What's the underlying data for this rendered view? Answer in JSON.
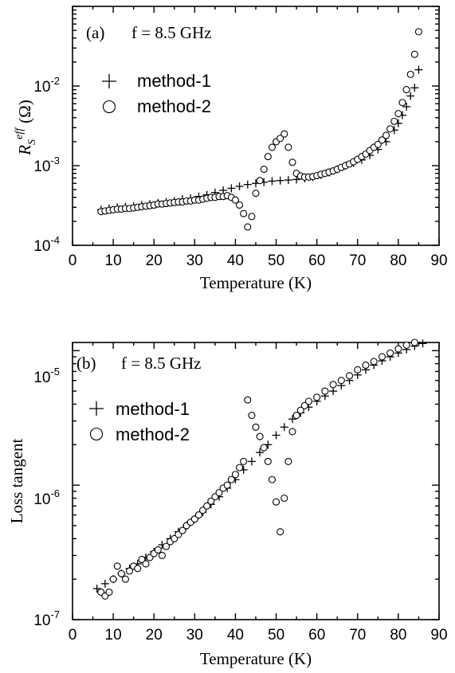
{
  "chart_data": [
    {
      "type": "scatter",
      "panel_label": "(a)",
      "frequency_label": "f = 8.5 GHz",
      "xlabel": "Temperature (K)",
      "ylabel": "R_S^eff (Ω)",
      "ylabel_parts": {
        "main": "R",
        "sub": "S",
        "sup": "eff",
        "unit": "(Ω)"
      },
      "xlim": [
        0,
        90
      ],
      "ylim": [
        0.0001,
        0.1
      ],
      "yscale": "log",
      "x_ticks": [
        "0",
        "10",
        "20",
        "30",
        "40",
        "50",
        "60",
        "70",
        "80",
        "90"
      ],
      "y_ticks": [
        {
          "base": "10",
          "exp": "-4"
        },
        {
          "base": "10",
          "exp": "-3"
        },
        {
          "base": "10",
          "exp": "-2"
        }
      ],
      "legend_position": "top-left",
      "series": [
        {
          "name": "method-1",
          "marker": "plus",
          "x": [
            7,
            9,
            11,
            13,
            15,
            17,
            19,
            21,
            23,
            25,
            27,
            29,
            31,
            33,
            35,
            37,
            39,
            41,
            43,
            45,
            47,
            49,
            51,
            53,
            55,
            57,
            59,
            61,
            63,
            65,
            67,
            69,
            71,
            73,
            75,
            77,
            79,
            80,
            81,
            82,
            83,
            84,
            85
          ],
          "y": [
            0.00028,
            0.00029,
            0.0003,
            0.000305,
            0.00031,
            0.00032,
            0.00033,
            0.00034,
            0.00035,
            0.00036,
            0.00038,
            0.00039,
            0.00041,
            0.00043,
            0.00046,
            0.00049,
            0.00052,
            0.00055,
            0.00058,
            0.0006,
            0.00062,
            0.00064,
            0.00065,
            0.00066,
            0.00067,
            0.00069,
            0.00072,
            0.00076,
            0.00082,
            0.0009,
            0.001,
            0.00108,
            0.00118,
            0.00135,
            0.0016,
            0.002,
            0.0028,
            0.0034,
            0.0043,
            0.0055,
            0.0075,
            0.0095,
            0.016
          ]
        },
        {
          "name": "method-2",
          "marker": "circle",
          "x": [
            7,
            8,
            9,
            10,
            11,
            12,
            13,
            14,
            15,
            16,
            17,
            18,
            19,
            20,
            21,
            22,
            23,
            24,
            25,
            26,
            27,
            28,
            29,
            30,
            31,
            32,
            33,
            34,
            35,
            36,
            37,
            38,
            39,
            40,
            41,
            42,
            43,
            44,
            45,
            46,
            47,
            48,
            49,
            50,
            51,
            52,
            53,
            54,
            55,
            56,
            57,
            58,
            59,
            60,
            61,
            62,
            63,
            64,
            65,
            66,
            67,
            68,
            69,
            70,
            71,
            72,
            73,
            74,
            75,
            76,
            77,
            78,
            79,
            80,
            81,
            82,
            83,
            84,
            85
          ],
          "y": [
            0.000265,
            0.00027,
            0.000275,
            0.00028,
            0.000285,
            0.000285,
            0.00029,
            0.00029,
            0.000295,
            0.0003,
            0.000305,
            0.00031,
            0.000315,
            0.00032,
            0.00033,
            0.00033,
            0.000335,
            0.00034,
            0.000345,
            0.00035,
            0.00035,
            0.00036,
            0.00036,
            0.00037,
            0.00037,
            0.00038,
            0.00039,
            0.0004,
            0.0004,
            0.00041,
            0.00041,
            0.00042,
            0.0004,
            0.00037,
            0.00032,
            0.00025,
            0.00017,
            0.00023,
            0.00045,
            0.00065,
            0.0009,
            0.0013,
            0.0017,
            0.002,
            0.0022,
            0.0025,
            0.0017,
            0.0011,
            0.0008,
            0.00074,
            0.00072,
            0.00072,
            0.00073,
            0.00075,
            0.00078,
            0.0008,
            0.00083,
            0.00086,
            0.0009,
            0.00095,
            0.001,
            0.00105,
            0.00112,
            0.0012,
            0.0013,
            0.0014,
            0.00155,
            0.0017,
            0.00185,
            0.0021,
            0.0024,
            0.0029,
            0.0036,
            0.0045,
            0.0062,
            0.009,
            0.014,
            0.025,
            0.048
          ]
        }
      ]
    },
    {
      "type": "scatter",
      "panel_label": "(b)",
      "frequency_label": "f = 8.5 GHz",
      "xlabel": "Temperature (K)",
      "ylabel": "Loss tangent",
      "xlim": [
        0,
        90
      ],
      "ylim": [
        1e-07,
        1.15e-05
      ],
      "yscale": "log",
      "x_ticks": [
        "0",
        "10",
        "20",
        "30",
        "40",
        "50",
        "60",
        "70",
        "80",
        "90"
      ],
      "y_ticks": [
        {
          "base": "10",
          "exp": "-7"
        },
        {
          "base": "10",
          "exp": "-6"
        },
        {
          "base": "10",
          "exp": "-5"
        }
      ],
      "legend_position": "top-left",
      "series": [
        {
          "name": "method-1",
          "marker": "plus",
          "x": [
            6,
            8,
            10,
            12,
            14,
            16,
            18,
            20,
            22,
            24,
            26,
            28,
            30,
            32,
            34,
            36,
            38,
            40,
            42,
            44,
            46,
            48,
            50,
            52,
            54,
            56,
            58,
            60,
            62,
            64,
            66,
            68,
            70,
            72,
            74,
            76,
            78,
            80,
            82,
            84,
            86
          ],
          "y": [
            1.7e-07,
            1.85e-07,
            2e-07,
            2.2e-07,
            2.4e-07,
            2.6e-07,
            2.9e-07,
            3.2e-07,
            3.6e-07,
            4e-07,
            4.5e-07,
            5e-07,
            5.6e-07,
            6.3e-07,
            7.2e-07,
            8.2e-07,
            9.5e-07,
            1.1e-06,
            1.3e-06,
            1.5e-06,
            1.75e-06,
            2e-06,
            2.35e-06,
            2.7e-06,
            3.1e-06,
            3.45e-06,
            3.8e-06,
            4.2e-06,
            4.6e-06,
            5e-06,
            5.5e-06,
            6e-06,
            6.6e-06,
            7.2e-06,
            7.8e-06,
            8.4e-06,
            9e-06,
            9.6e-06,
            1.02e-05,
            1.08e-05,
            1.13e-05
          ]
        },
        {
          "name": "method-2",
          "marker": "circle",
          "x": [
            7,
            8,
            9,
            10,
            11,
            12,
            13,
            14,
            15,
            16,
            17,
            18,
            19,
            20,
            21,
            22,
            23,
            24,
            25,
            26,
            27,
            28,
            29,
            30,
            31,
            32,
            33,
            34,
            35,
            36,
            37,
            38,
            39,
            40,
            41,
            42,
            43,
            44,
            45,
            46,
            47,
            48,
            49,
            50,
            51,
            52,
            53,
            54,
            55,
            56,
            57,
            58,
            60,
            62,
            64,
            66,
            68,
            70,
            72,
            74,
            76,
            78,
            80,
            82,
            84
          ],
          "y": [
            1.6e-07,
            1.5e-07,
            1.6e-07,
            2e-07,
            2.5e-07,
            2.2e-07,
            2e-07,
            2.3e-07,
            2.5e-07,
            2.4e-07,
            2.8e-07,
            2.6e-07,
            2.9e-07,
            3.1e-07,
            3.3e-07,
            3e-07,
            3.5e-07,
            3.8e-07,
            4e-07,
            4.3e-07,
            4.6e-07,
            5e-07,
            5.3e-07,
            5.6e-07,
            6e-07,
            6.5e-07,
            7e-07,
            7.6e-07,
            8.2e-07,
            8.8e-07,
            9.5e-07,
            1e-06,
            1.1e-06,
            1.2e-06,
            1.35e-06,
            1.5e-06,
            4.3e-06,
            3.3e-06,
            2.7e-06,
            2.3e-06,
            1.9e-06,
            1.5e-06,
            1.1e-06,
            7.5e-07,
            4.5e-07,
            8e-07,
            1.5e-06,
            2.5e-06,
            3.3e-06,
            3.6e-06,
            3.9e-06,
            4.2e-06,
            4.5e-06,
            5e-06,
            5.6e-06,
            6e-06,
            6.5e-06,
            7.2e-06,
            7.8e-06,
            8.3e-06,
            9e-06,
            9.6e-06,
            1.03e-05,
            1.1e-05,
            1.15e-05
          ]
        }
      ]
    }
  ]
}
